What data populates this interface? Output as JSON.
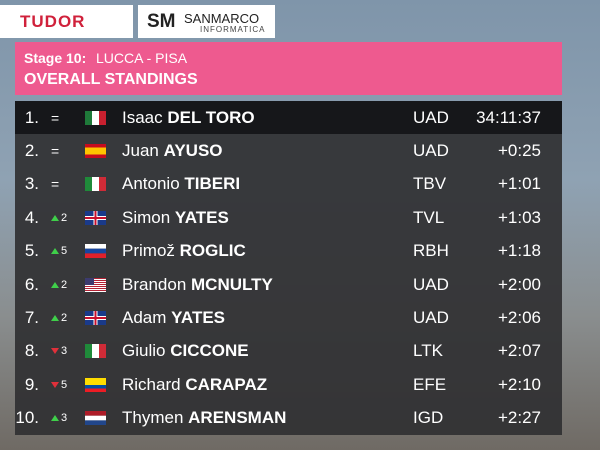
{
  "sponsors": {
    "left": "TUDOR",
    "right_mark": "SM",
    "right_name": "SANMARCO",
    "right_sub": "INFORMATICA"
  },
  "header": {
    "stage": "Stage 10:",
    "route": "LUCCA - PISA",
    "title": "OVERALL STANDINGS"
  },
  "rows": [
    {
      "rank": "1.",
      "change": "=",
      "trend": "same",
      "flag": "mx",
      "first": "Isaac",
      "last": "DEL TORO",
      "team": "UAD",
      "time": "34:11:37",
      "leader": true
    },
    {
      "rank": "2.",
      "change": "=",
      "trend": "same",
      "flag": "es",
      "first": "Juan",
      "last": "AYUSO",
      "team": "UAD",
      "time": "+0:25"
    },
    {
      "rank": "3.",
      "change": "=",
      "trend": "same",
      "flag": "it",
      "first": "Antonio",
      "last": "TIBERI",
      "team": "TBV",
      "time": "+1:01"
    },
    {
      "rank": "4.",
      "change": "2",
      "trend": "up",
      "flag": "gb",
      "first": "Simon",
      "last": "YATES",
      "team": "TVL",
      "time": "+1:03"
    },
    {
      "rank": "5.",
      "change": "5",
      "trend": "up",
      "flag": "si",
      "first": "Primož",
      "last": "ROGLIC",
      "team": "RBH",
      "time": "+1:18"
    },
    {
      "rank": "6.",
      "change": "2",
      "trend": "up",
      "flag": "us",
      "first": "Brandon",
      "last": "MCNULTY",
      "team": "UAD",
      "time": "+2:00"
    },
    {
      "rank": "7.",
      "change": "2",
      "trend": "up",
      "flag": "gb",
      "first": "Adam",
      "last": "YATES",
      "team": "UAD",
      "time": "+2:06"
    },
    {
      "rank": "8.",
      "change": "3",
      "trend": "down",
      "flag": "it",
      "first": "Giulio",
      "last": "CICCONE",
      "team": "LTK",
      "time": "+2:07"
    },
    {
      "rank": "9.",
      "change": "5",
      "trend": "down",
      "flag": "ec",
      "first": "Richard",
      "last": "CARAPAZ",
      "team": "EFE",
      "time": "+2:10"
    },
    {
      "rank": "10.",
      "change": "3",
      "trend": "up",
      "flag": "nl",
      "first": "Thymen",
      "last": "ARENSMAN",
      "team": "IGD",
      "time": "+2:27"
    }
  ]
}
